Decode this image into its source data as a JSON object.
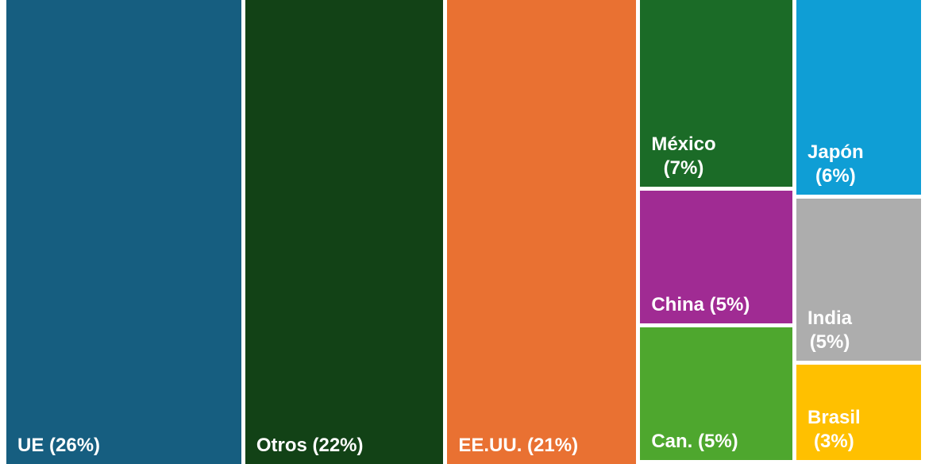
{
  "chart_data": {
    "type": "treemap",
    "categories": [
      "UE",
      "Otros",
      "EE.UU.",
      "México",
      "China",
      "Can.",
      "Japón",
      "India",
      "Brasil"
    ],
    "values": [
      26,
      22,
      21,
      7,
      5,
      5,
      6,
      5,
      3
    ],
    "value_labels": [
      "UE (26%)",
      "Otros (22%)",
      "EE.UU. (21%)",
      "México\n(7%)",
      "China (5%)",
      "Can. (5%)",
      "Japón\n(6%)",
      "India\n(5%)",
      "Brasil\n(3%)"
    ],
    "colors": [
      "#165e80",
      "#124216",
      "#e97132",
      "#1b6b27",
      "#a02b93",
      "#4ea72e",
      "#0f9ed5",
      "#adadad",
      "#ffc000"
    ]
  }
}
